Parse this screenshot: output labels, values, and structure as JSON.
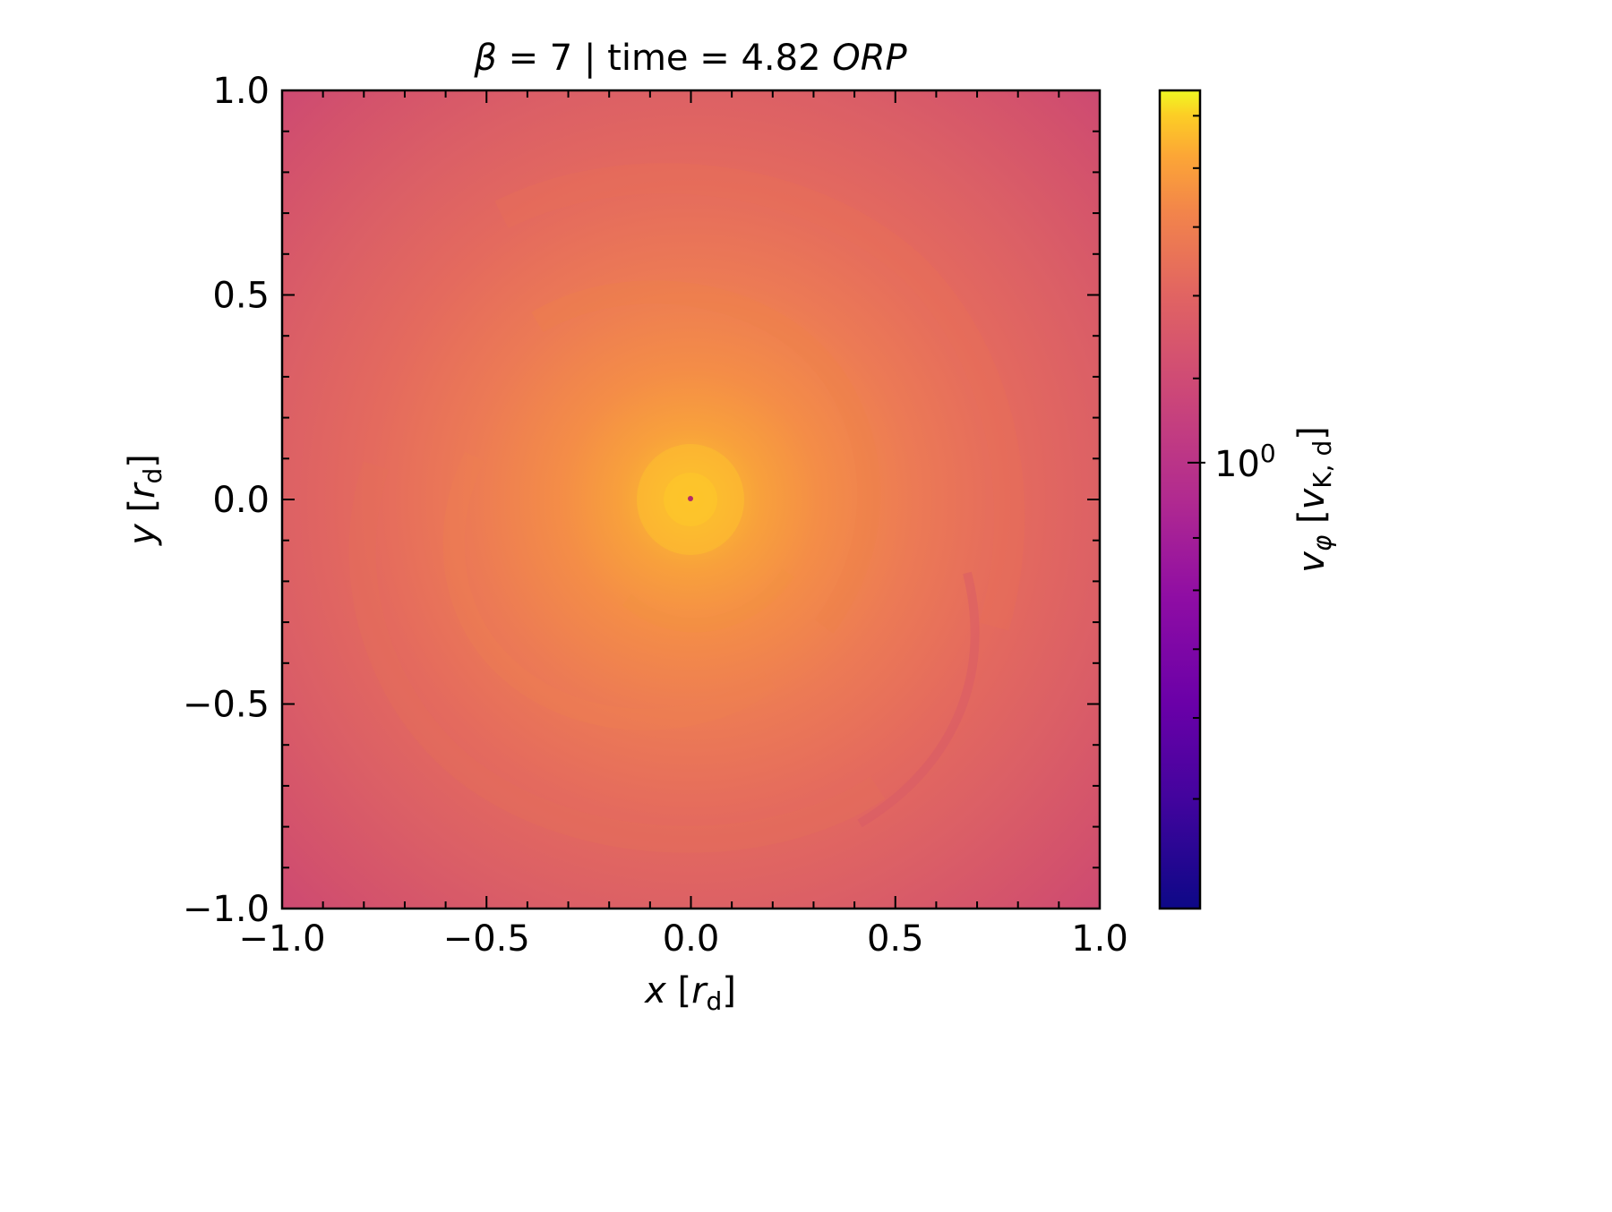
{
  "chart_data": {
    "type": "heatmap",
    "title": {
      "prefix_symbol": "β",
      "middle": " = 7 | time = 4.82 ",
      "suffix_italic": "ORP"
    },
    "x_axis": {
      "label_var": "x",
      "label_unit_base": "r",
      "label_unit_sub": "d",
      "range": [
        -1.0,
        1.0
      ],
      "major_ticks": [
        -1.0,
        -0.5,
        0.0,
        0.5,
        1.0
      ],
      "tick_labels": [
        "−1.0",
        "−0.5",
        "0.0",
        "0.5",
        "1.0"
      ],
      "minor_step": 0.1
    },
    "y_axis": {
      "label_var": "y",
      "label_unit_base": "r",
      "label_unit_sub": "d",
      "range": [
        -1.0,
        1.0
      ],
      "major_ticks": [
        -1.0,
        -0.5,
        0.0,
        0.5,
        1.0
      ],
      "tick_labels": [
        "−1.0",
        "−0.5",
        "0.0",
        "0.5",
        "1.0"
      ],
      "minor_step": 0.1
    },
    "colorbar": {
      "colormap": "plasma",
      "scale": "log",
      "label_var": "v",
      "label_var_sub": "φ",
      "label_unit_base": "v",
      "label_unit_sub": "K, d",
      "major_tick_label_base": "10",
      "major_tick_label_exp": "0",
      "major_tick_value": 1.0,
      "major_tick_fraction": 0.545,
      "minor_tick_fractions": [
        0.134,
        0.233,
        0.317,
        0.389,
        0.453,
        0.648,
        0.749,
        0.833,
        0.905,
        0.969
      ]
    },
    "field": {
      "description_colors": [
        "#0d0887",
        "#7e03a8",
        "#cc4778",
        "#f89540",
        "#f0f921"
      ],
      "center_value_fraction": 0.93,
      "edge_value_fraction": 0.54,
      "corner_value_fraction": 0.49
    }
  }
}
